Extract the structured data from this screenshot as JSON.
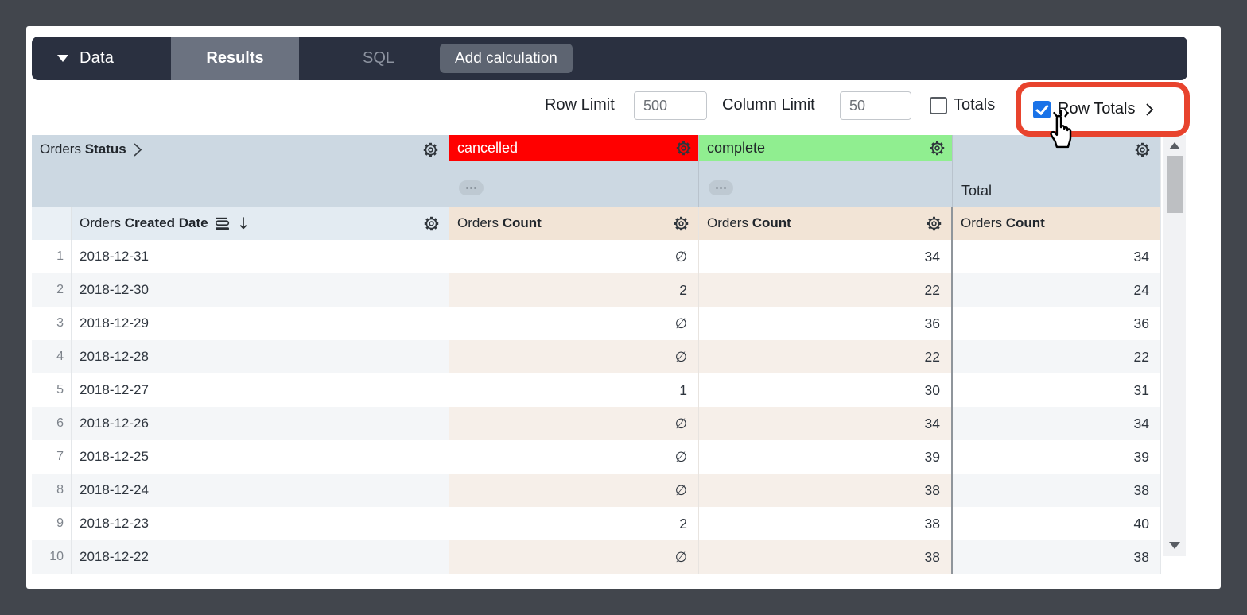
{
  "toolbar": {
    "data_label": "Data",
    "results_tab": "Results",
    "sql_tab": "SQL",
    "add_calculation": "Add calculation"
  },
  "controls": {
    "row_limit_label": "Row Limit",
    "row_limit_value": "500",
    "column_limit_label": "Column Limit",
    "column_limit_value": "50",
    "totals_label": "Totals",
    "totals_checked": false,
    "row_totals_label": "Row Totals",
    "row_totals_checked": true
  },
  "annotation": {
    "highlight_color": "#e8432d",
    "target": "Row Totals checkbox"
  },
  "table": {
    "pivot_row": {
      "dimension": {
        "regular": "Orders",
        "bold": "Status"
      },
      "values": [
        {
          "label": "cancelled",
          "bg": "#ff0000",
          "text_color": "#ffffff"
        },
        {
          "label": "complete",
          "bg": "#90ee90",
          "text_color": "#1f2428"
        }
      ],
      "total_label": "Total"
    },
    "field_row": {
      "dimension": {
        "regular": "Orders",
        "bold": "Created Date"
      },
      "measure_cancelled": {
        "regular": "Orders",
        "bold": "Count"
      },
      "measure_complete": {
        "regular": "Orders",
        "bold": "Count"
      },
      "measure_total": {
        "regular": "Orders",
        "bold": "Count"
      }
    },
    "null_symbol": "∅",
    "rows": [
      {
        "n": "1",
        "date": "2018-12-31",
        "cancelled": "∅",
        "complete": "34",
        "total": "34"
      },
      {
        "n": "2",
        "date": "2018-12-30",
        "cancelled": "2",
        "complete": "22",
        "total": "24"
      },
      {
        "n": "3",
        "date": "2018-12-29",
        "cancelled": "∅",
        "complete": "36",
        "total": "36"
      },
      {
        "n": "4",
        "date": "2018-12-28",
        "cancelled": "∅",
        "complete": "22",
        "total": "22"
      },
      {
        "n": "5",
        "date": "2018-12-27",
        "cancelled": "1",
        "complete": "30",
        "total": "31"
      },
      {
        "n": "6",
        "date": "2018-12-26",
        "cancelled": "∅",
        "complete": "34",
        "total": "34"
      },
      {
        "n": "7",
        "date": "2018-12-25",
        "cancelled": "∅",
        "complete": "39",
        "total": "39"
      },
      {
        "n": "8",
        "date": "2018-12-24",
        "cancelled": "∅",
        "complete": "38",
        "total": "38"
      },
      {
        "n": "9",
        "date": "2018-12-23",
        "cancelled": "2",
        "complete": "38",
        "total": "40"
      },
      {
        "n": "10",
        "date": "2018-12-22",
        "cancelled": "∅",
        "complete": "38",
        "total": "38"
      }
    ]
  },
  "colors": {
    "frame": "#42464d",
    "toolbar_bg": "#2a3040",
    "results_tab_bg": "#6b7280",
    "pivot_header_bg": "#ccd8e2",
    "dimension_header_bg": "#e3ebf2",
    "measure_header_bg": "#f2e4d6",
    "checkbox_blue": "#1a73e8",
    "alt_row_gray": "#f4f6f8",
    "alt_row_beige": "#f6efe9"
  }
}
